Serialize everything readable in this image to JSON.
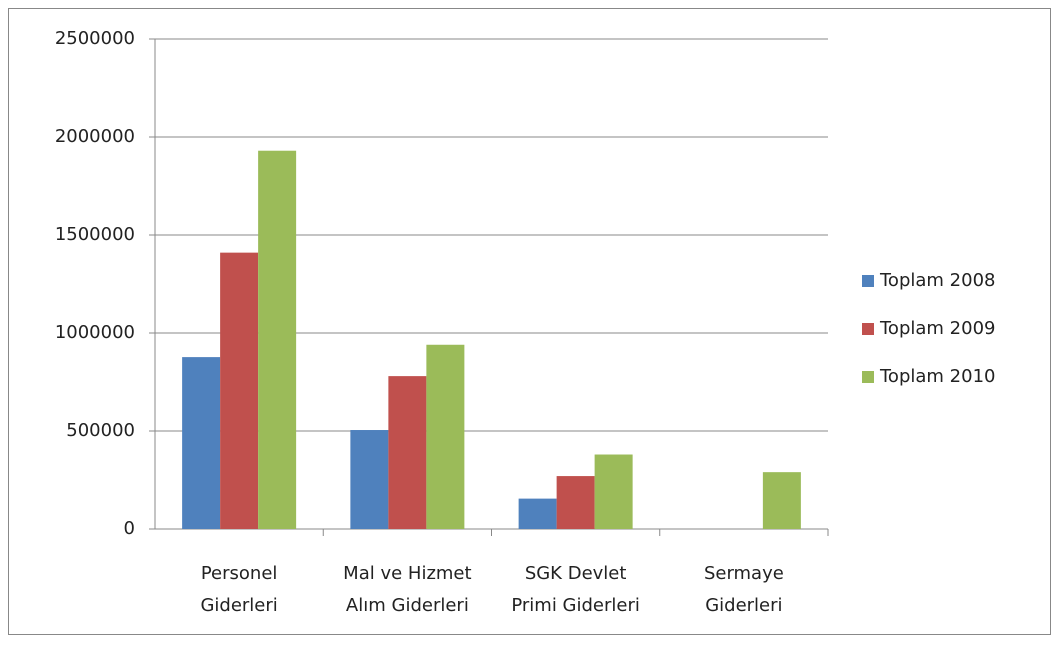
{
  "chart_data": {
    "type": "bar",
    "categories": [
      [
        "Personel",
        "Giderleri"
      ],
      [
        "Mal ve Hizmet",
        "Alım Giderleri"
      ],
      [
        "SGK Devlet",
        "Primi Giderleri"
      ],
      [
        "Sermaye",
        "Giderleri"
      ]
    ],
    "series": [
      {
        "name": "Toplam 2008",
        "color": "#4f81bd",
        "values": [
          877000,
          505000,
          155000,
          0
        ]
      },
      {
        "name": "Toplam 2009",
        "color": "#c0504d",
        "values": [
          1410000,
          780000,
          270000,
          0
        ]
      },
      {
        "name": "Toplam 2010",
        "color": "#9bbb59",
        "values": [
          1930000,
          940000,
          380000,
          290000
        ]
      }
    ],
    "ylim": [
      0,
      2500000
    ],
    "yticks": [
      0,
      500000,
      1000000,
      1500000,
      2000000,
      2500000
    ],
    "grid": true,
    "legend": "right"
  }
}
